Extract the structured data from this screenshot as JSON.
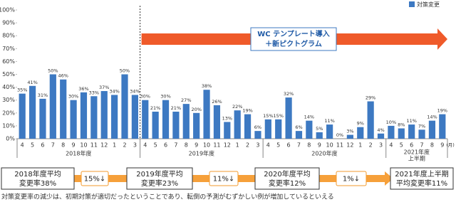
{
  "chart_data": {
    "type": "bar",
    "legend": "対策変更",
    "color": "#3d79c2",
    "categories": [
      "4",
      "5",
      "6",
      "7",
      "8",
      "9",
      "10",
      "11",
      "12",
      "1",
      "2",
      "3",
      "4",
      "5",
      "6",
      "7",
      "8",
      "9",
      "10",
      "11",
      "12",
      "1",
      "2",
      "3",
      "4",
      "5",
      "6",
      "7",
      "8",
      "9",
      "10",
      "11",
      "12",
      "1",
      "2",
      "3",
      "4",
      "5",
      "6",
      "7",
      "8",
      "9"
    ],
    "values": [
      35,
      41,
      31,
      50,
      46,
      30,
      36,
      33,
      37,
      34,
      50,
      34,
      30,
      21,
      30,
      21,
      27,
      20,
      38,
      26,
      13,
      22,
      19,
      6,
      15,
      15,
      32,
      6,
      14,
      5,
      11,
      0,
      3,
      9,
      29,
      4,
      10,
      8,
      11,
      7,
      14,
      19
    ],
    "value_labels": [
      "35%",
      "41%",
      "31%",
      "50%",
      "46%",
      "30%",
      "36%",
      "33%",
      "37%",
      "34%",
      "50%",
      "34%",
      "30%",
      "21%",
      "30%",
      "21%",
      "27%",
      "20%",
      "38%",
      "26%",
      "13%",
      "22%",
      "19%",
      "6%",
      "15%",
      "15%",
      "32%",
      "6%",
      "14%",
      "5%",
      "11%",
      "0%",
      "3%",
      "9%",
      "29%",
      "4%",
      "10%",
      "8%",
      "11%",
      "7%",
      "14%",
      "19%"
    ],
    "x_unit": "(月)",
    "groups": [
      [
        "2018年度"
      ],
      [
        "2019年度"
      ],
      [
        "2020年度"
      ],
      [
        "2021年度",
        "上半期"
      ]
    ],
    "ylim": [
      0,
      100
    ],
    "yticks": [
      {
        "value": 0,
        "label": "0%"
      },
      {
        "value": 10,
        "label": "10%"
      },
      {
        "value": 20,
        "label": "20%"
      },
      {
        "value": 30,
        "label": "30%"
      },
      {
        "value": 40,
        "label": "40%"
      },
      {
        "value": 50,
        "label": "50%"
      },
      {
        "value": 60,
        "label": "60%"
      },
      {
        "value": 70,
        "label": "70%"
      },
      {
        "value": 80,
        "label": "80%"
      },
      {
        "value": 90,
        "label": "90%"
      },
      {
        "value": 100,
        "label": "100%"
      }
    ],
    "annotation": [
      "WC テンプレート導入",
      "＋新ピクトグラム"
    ]
  },
  "summary": {
    "boxes": [
      [
        "2018年度平均",
        "変更率38%"
      ],
      [
        "2019年度平均",
        "変更率23%"
      ],
      [
        "2020年度平均",
        "変更率12%"
      ],
      [
        "2021年度上半期",
        "平均変更率11%"
      ]
    ],
    "changes": [
      "15%↓",
      "11%↓",
      "1%↓"
    ]
  },
  "note": "対策変更率の減少は、初期対策が適切だったということであり、転倒の予測がむずかしい例が増加しているといえる"
}
